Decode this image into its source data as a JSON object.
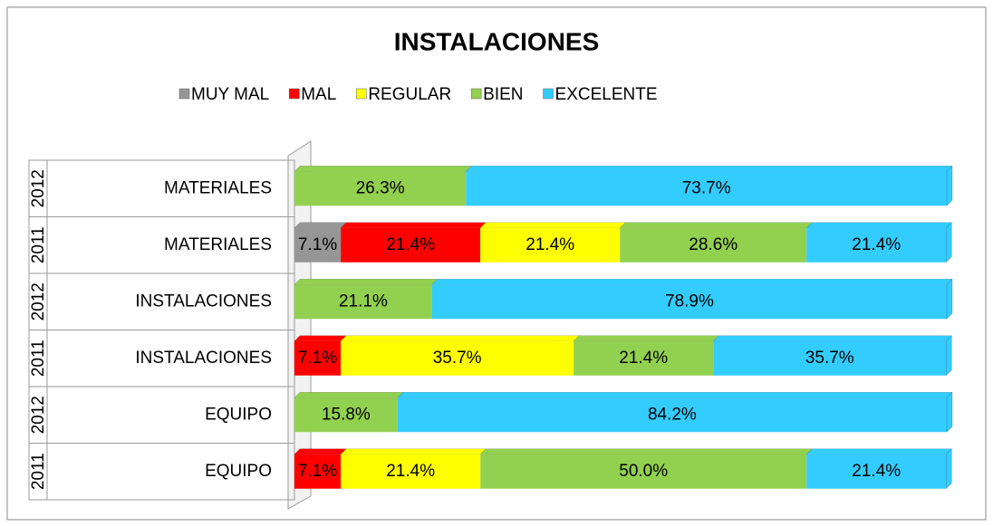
{
  "chart_data": {
    "type": "bar",
    "orientation": "horizontal",
    "stacked": true,
    "title": "INSTALACIONES",
    "years": [
      "2012",
      "2011",
      "2012",
      "2011",
      "2012",
      "2011"
    ],
    "categories": [
      "MATERIALES",
      "MATERIALES",
      "INSTALACIONES",
      "INSTALACIONES",
      "EQUIPO",
      "EQUIPO"
    ],
    "xlim": [
      0,
      100
    ],
    "legend": "top",
    "series": [
      {
        "name": "MUY MAL",
        "color": "#969696",
        "values": [
          null,
          7.1,
          null,
          null,
          null,
          null
        ],
        "value_labels": [
          null,
          "7.1%",
          null,
          null,
          null,
          null
        ]
      },
      {
        "name": "MAL",
        "color": "#ff0000",
        "values": [
          null,
          21.4,
          null,
          7.1,
          null,
          7.1
        ],
        "value_labels": [
          null,
          "21.4%",
          null,
          "7.1%",
          null,
          "7.1%"
        ]
      },
      {
        "name": "REGULAR",
        "color": "#ffff00",
        "values": [
          null,
          21.4,
          null,
          35.7,
          null,
          21.4
        ],
        "value_labels": [
          null,
          "21.4%",
          null,
          "35.7%",
          null,
          "21.4%"
        ]
      },
      {
        "name": "BIEN",
        "color": "#92d050",
        "values": [
          26.3,
          28.6,
          21.1,
          21.4,
          15.8,
          50.0
        ],
        "value_labels": [
          "26.3%",
          "28.6%",
          "21.1%",
          "21.4%",
          "15.8%",
          "50.0%"
        ]
      },
      {
        "name": "EXCELENTE",
        "color": "#33ccff",
        "values": [
          73.7,
          21.4,
          78.9,
          35.7,
          84.2,
          21.4
        ],
        "value_labels": [
          "73.7%",
          "21.4%",
          "78.9%",
          "35.7%",
          "84.2%",
          "21.4%"
        ]
      }
    ]
  }
}
